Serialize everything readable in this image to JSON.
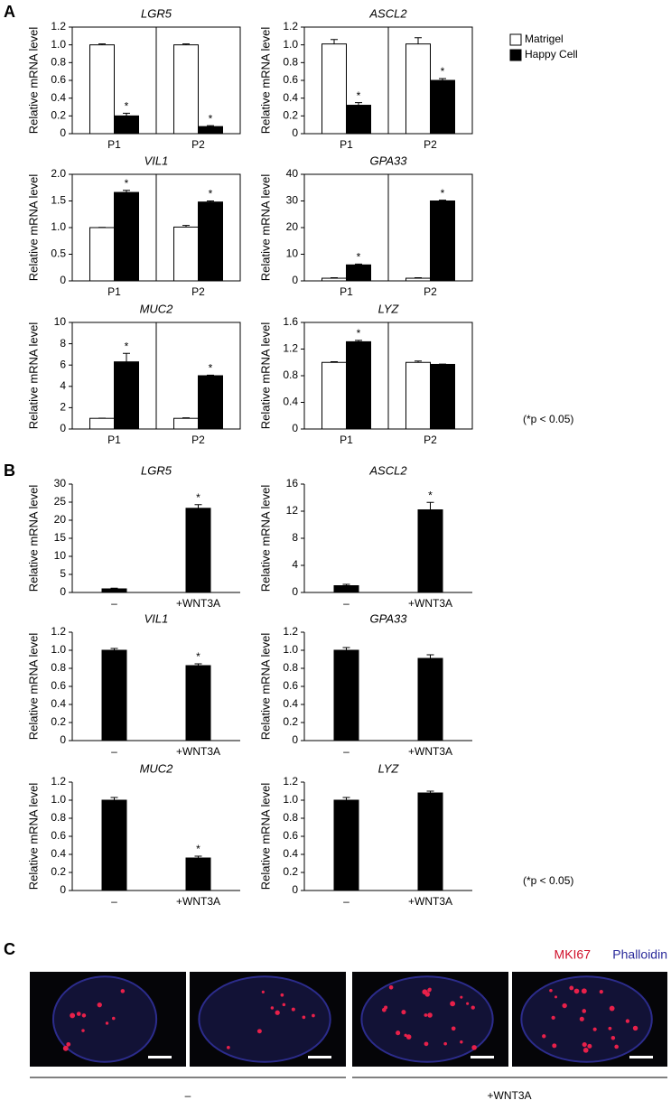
{
  "panel_labels": [
    "A",
    "B",
    "C"
  ],
  "chart_data": [
    {
      "type": "bar",
      "title": "LGR5",
      "y_label": "Relative mRNA level",
      "frame": "box",
      "categories": [
        "P1",
        "P2"
      ],
      "series": [
        {
          "color": "#ffffff",
          "values": [
            1.0,
            1.0
          ],
          "errors": [
            0.01,
            0.01
          ],
          "significance": [
            null,
            null
          ]
        },
        {
          "color": "#000000",
          "values": [
            0.2,
            0.08
          ],
          "errors": [
            0.03,
            0.01
          ],
          "significance": [
            "*",
            "*"
          ]
        }
      ],
      "ylim": [
        0,
        1.2
      ],
      "yticks": [
        0,
        0.2,
        0.4,
        0.6,
        0.8,
        {
          "value": 1,
          "label": "1.0"
        },
        1.2
      ]
    },
    {
      "type": "bar",
      "title": "ASCL2",
      "y_label": "Relative mRNA level",
      "frame": "box",
      "categories": [
        "P1",
        "P2"
      ],
      "legend": "right",
      "series": [
        {
          "name": "Matrigel",
          "color": "#ffffff",
          "values": [
            1.01,
            1.01
          ],
          "errors": [
            0.05,
            0.07
          ],
          "significance": [
            null,
            null
          ]
        },
        {
          "name": "Happy Cell",
          "color": "#000000",
          "values": [
            0.32,
            0.6
          ],
          "errors": [
            0.03,
            0.02
          ],
          "significance": [
            "*",
            "*"
          ]
        }
      ],
      "ylim": [
        0,
        1.2
      ],
      "yticks": [
        0,
        0.2,
        0.4,
        0.6,
        0.8,
        {
          "value": 1,
          "label": "1.0"
        },
        1.2
      ]
    },
    {
      "type": "bar",
      "title": "VIL1",
      "y_label": "Relative mRNA level",
      "frame": "box",
      "categories": [
        "P1",
        "P2"
      ],
      "series": [
        {
          "color": "#ffffff",
          "values": [
            1.0,
            1.01
          ],
          "errors": [
            0.005,
            0.03
          ],
          "significance": [
            null,
            null
          ]
        },
        {
          "color": "#000000",
          "values": [
            1.66,
            1.48
          ],
          "errors": [
            0.04,
            0.02
          ],
          "significance": [
            "*",
            "*"
          ]
        }
      ],
      "ylim": [
        0,
        2
      ],
      "yticks": [
        0,
        0.5,
        {
          "value": 1,
          "label": "1.0"
        },
        1.5,
        {
          "value": 2,
          "label": "2.0"
        }
      ]
    },
    {
      "type": "bar",
      "title": "GPA33",
      "y_label": "Relative mRNA level",
      "frame": "box",
      "categories": [
        "P1",
        "P2"
      ],
      "series": [
        {
          "color": "#ffffff",
          "values": [
            1,
            1
          ],
          "errors": [
            0.2,
            0.2
          ],
          "significance": [
            null,
            null
          ]
        },
        {
          "color": "#000000",
          "values": [
            6,
            30
          ],
          "errors": [
            0.3,
            0.3
          ],
          "significance": [
            "*",
            "*"
          ]
        }
      ],
      "ylim": [
        0,
        40
      ],
      "yticks": [
        0,
        10,
        20,
        30,
        40
      ]
    },
    {
      "type": "bar",
      "title": "MUC2",
      "y_label": "Relative mRNA level",
      "frame": "box",
      "categories": [
        "P1",
        "P2"
      ],
      "series": [
        {
          "color": "#ffffff",
          "values": [
            1,
            1
          ],
          "errors": [
            0.02,
            0.05
          ],
          "significance": [
            null,
            null
          ]
        },
        {
          "color": "#000000",
          "values": [
            6.3,
            5.0
          ],
          "errors": [
            0.8,
            0.05
          ],
          "significance": [
            "*",
            "*"
          ]
        }
      ],
      "ylim": [
        0,
        10
      ],
      "yticks": [
        0,
        2,
        4,
        6,
        8,
        10
      ]
    },
    {
      "type": "bar",
      "title": "LYZ",
      "y_label": "Relative mRNA level",
      "frame": "box",
      "categories": [
        "P1",
        "P2"
      ],
      "note": "(*p < 0.05)",
      "series": [
        {
          "color": "#ffffff",
          "values": [
            1.0,
            1.0
          ],
          "errors": [
            0.01,
            0.02
          ],
          "significance": [
            null,
            null
          ]
        },
        {
          "color": "#000000",
          "values": [
            1.31,
            0.97
          ],
          "errors": [
            0.02,
            0.005
          ],
          "significance": [
            "*",
            null
          ]
        }
      ],
      "ylim": [
        0,
        1.6
      ],
      "yticks": [
        0,
        0.4,
        0.8,
        1.2,
        1.6
      ]
    },
    {
      "type": "bar",
      "title": "LGR5",
      "y_label": "Relative mRNA level",
      "frame": "axes",
      "categories": [
        "–",
        "+WNT3A"
      ],
      "series": [
        {
          "color": "#000000",
          "values": [
            1,
            23.3
          ],
          "errors": [
            0.2,
            1.0
          ],
          "significance": [
            null,
            "*"
          ]
        }
      ],
      "ylim": [
        0,
        30
      ],
      "yticks": [
        0,
        5,
        10,
        15,
        20,
        25,
        30
      ]
    },
    {
      "type": "bar",
      "title": "ASCL2",
      "y_label": "Relative mRNA level",
      "frame": "axes",
      "categories": [
        "–",
        "+WNT3A"
      ],
      "series": [
        {
          "color": "#000000",
          "values": [
            1.0,
            12.2
          ],
          "errors": [
            0.2,
            1.1
          ],
          "significance": [
            null,
            "*"
          ]
        }
      ],
      "ylim": [
        0,
        16
      ],
      "yticks": [
        0,
        4,
        8,
        12,
        16
      ]
    },
    {
      "type": "bar",
      "title": "VIL1",
      "y_label": "Relative mRNA level",
      "frame": "axes",
      "categories": [
        "–",
        "+WNT3A"
      ],
      "series": [
        {
          "color": "#000000",
          "values": [
            1.0,
            0.83
          ],
          "errors": [
            0.02,
            0.02
          ],
          "significance": [
            null,
            "*"
          ]
        }
      ],
      "ylim": [
        0,
        1.2
      ],
      "yticks": [
        0,
        0.2,
        0.4,
        0.6,
        0.8,
        {
          "value": 1,
          "label": "1.0"
        },
        1.2
      ]
    },
    {
      "type": "bar",
      "title": "GPA33",
      "y_label": "Relative mRNA level",
      "frame": "axes",
      "categories": [
        "–",
        "+WNT3A"
      ],
      "series": [
        {
          "color": "#000000",
          "values": [
            1.0,
            0.91
          ],
          "errors": [
            0.03,
            0.04
          ],
          "significance": [
            null,
            null
          ]
        }
      ],
      "ylim": [
        0,
        1.2
      ],
      "yticks": [
        0,
        0.2,
        0.4,
        0.6,
        0.8,
        {
          "value": 1,
          "label": "1.0"
        },
        1.2
      ]
    },
    {
      "type": "bar",
      "title": "MUC2",
      "y_label": "Relative mRNA level",
      "frame": "axes",
      "categories": [
        "–",
        "+WNT3A"
      ],
      "series": [
        {
          "color": "#000000",
          "values": [
            1.0,
            0.36
          ],
          "errors": [
            0.03,
            0.02
          ],
          "significance": [
            null,
            "*"
          ]
        }
      ],
      "ylim": [
        0,
        1.2
      ],
      "yticks": [
        0,
        0.2,
        0.4,
        0.6,
        0.8,
        {
          "value": 1,
          "label": "1.0"
        },
        1.2
      ]
    },
    {
      "type": "bar",
      "title": "LYZ",
      "y_label": "Relative mRNA level",
      "frame": "axes",
      "categories": [
        "–",
        "+WNT3A"
      ],
      "note": "(*p < 0.05)",
      "series": [
        {
          "color": "#000000",
          "values": [
            1.0,
            1.08
          ],
          "errors": [
            0.03,
            0.02
          ],
          "significance": [
            null,
            null
          ]
        }
      ],
      "ylim": [
        0,
        1.2
      ],
      "yticks": [
        0,
        0.2,
        0.4,
        0.6,
        0.8,
        {
          "value": 1,
          "label": "1.0"
        },
        1.2
      ]
    }
  ],
  "images": {
    "stains": [
      "MKI67",
      "Phalloidin"
    ],
    "groups": [
      "–",
      "+WNT3A"
    ]
  }
}
